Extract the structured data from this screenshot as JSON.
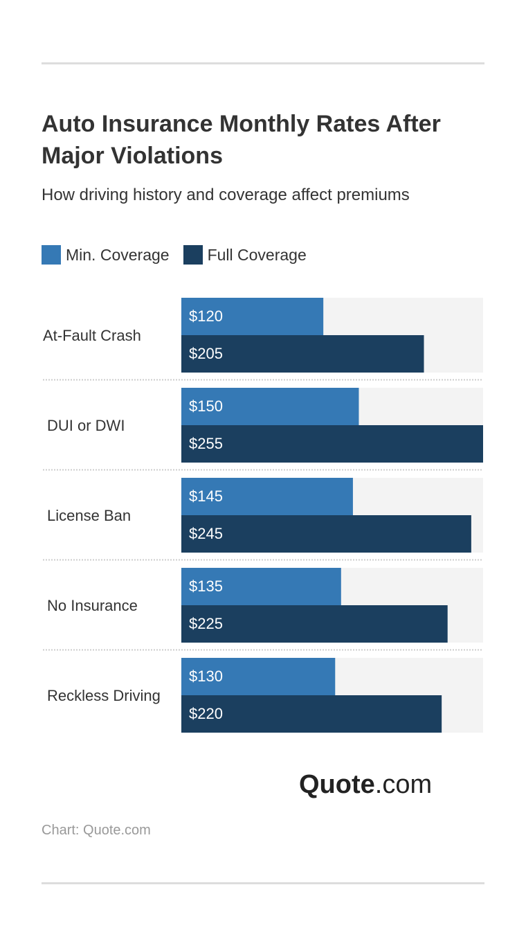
{
  "title": "Auto Insurance Monthly Rates After Major Violations",
  "subtitle": "How driving history and coverage affect premiums",
  "source": "Chart: Quote.com",
  "logo": {
    "bold": "Quote",
    "light": ".com"
  },
  "chart_data": {
    "type": "bar",
    "orientation": "horizontal",
    "categories": [
      "At-Fault Crash",
      "DUI or DWI",
      "License Ban",
      "No Insurance",
      "Reckless Driving"
    ],
    "series": [
      {
        "name": "Min. Coverage",
        "color": "#3579b5",
        "values": [
          120,
          150,
          145,
          135,
          130
        ],
        "labels": [
          "$120",
          "$150",
          "$145",
          "$135",
          "$130"
        ]
      },
      {
        "name": "Full Coverage",
        "color": "#1b3f5f",
        "values": [
          205,
          255,
          245,
          225,
          220
        ],
        "labels": [
          "$205",
          "$255",
          "$245",
          "$225",
          "$220"
        ]
      }
    ],
    "xlim": [
      0,
      255
    ],
    "track_color": "#f3f3f3",
    "legend": "top-left",
    "grid": false
  }
}
